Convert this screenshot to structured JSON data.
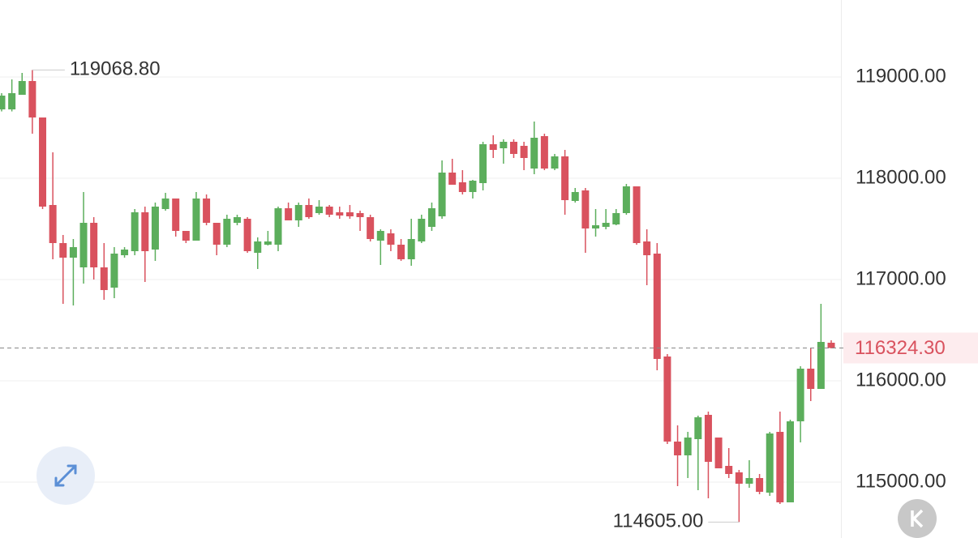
{
  "chart_data": {
    "type": "candlestick",
    "open": [
      118680,
      118680,
      118824,
      118960,
      118600,
      117736,
      117360,
      117216,
      117120,
      117560,
      117120,
      116920,
      117240,
      117280,
      117664,
      117296,
      117696,
      117800,
      117480,
      117384,
      117800,
      117560,
      117344,
      117560,
      117600,
      117264,
      117344,
      117344,
      117704,
      117584,
      117736,
      117656,
      117720,
      117664,
      117664,
      117656,
      117616,
      117384,
      117456,
      117344,
      117200,
      117376,
      117520,
      117624,
      118056,
      117960,
      117864,
      117952,
      118336,
      118296,
      118360,
      118320,
      118096,
      118416,
      118096,
      118216,
      117776,
      117880,
      117504,
      117520,
      117544,
      117656,
      117920,
      117376,
      117256,
      116240,
      115400,
      115264,
      115424,
      115664,
      115440,
      115160,
      115096,
      114984,
      115040,
      114896,
      115496,
      114800,
      115600,
      116120,
      115920,
      116376
    ],
    "high": [
      118840,
      118976,
      119040,
      119068.8,
      118600,
      118256,
      117440,
      117400,
      117864,
      117616,
      117360,
      117320,
      117320,
      117696,
      117720,
      117760,
      117856,
      117800,
      117480,
      117864,
      117840,
      117560,
      117640,
      117640,
      117616,
      117416,
      117480,
      117720,
      117760,
      117760,
      117800,
      117784,
      117736,
      117720,
      117736,
      117680,
      117640,
      117496,
      117496,
      117400,
      117600,
      117640,
      117760,
      118176,
      118192,
      118080,
      117984,
      118360,
      118424,
      118384,
      118384,
      118360,
      118560,
      118440,
      118240,
      118280,
      117904,
      117904,
      117696,
      117696,
      117696,
      117944,
      117920,
      117496,
      117360,
      116264,
      115560,
      115496,
      115656,
      115696,
      115440,
      115336,
      115120,
      115216,
      115080,
      115496,
      115696,
      115616,
      116144,
      116320,
      116760,
      116400
    ],
    "low": [
      118660,
      118660,
      118824,
      118440,
      117696,
      117200,
      116760,
      116744,
      116960,
      117000,
      116800,
      116816,
      117216,
      117240,
      116976,
      117184,
      117680,
      117424,
      117360,
      117384,
      117536,
      117240,
      117320,
      117536,
      117264,
      117104,
      117336,
      117280,
      117584,
      117520,
      117600,
      117640,
      117616,
      117600,
      117600,
      117480,
      117376,
      117144,
      117280,
      117184,
      117136,
      117360,
      117480,
      117600,
      117936,
      117840,
      117800,
      117880,
      118200,
      118144,
      118200,
      118080,
      118040,
      118080,
      118080,
      117640,
      117760,
      117264,
      117424,
      117496,
      117536,
      117640,
      117344,
      116944,
      116104,
      115376,
      114960,
      115040,
      114920,
      114840,
      115136,
      115040,
      114605,
      114944,
      114880,
      114864,
      114784,
      114800,
      115392,
      115800,
      115920,
      116320
    ],
    "close": [
      118816,
      118840,
      118960,
      118600,
      117720,
      117360,
      117216,
      117320,
      117560,
      117120,
      116896,
      117256,
      117296,
      117664,
      117280,
      117720,
      117800,
      117480,
      117384,
      117800,
      117560,
      117344,
      117600,
      117616,
      117280,
      117376,
      117376,
      117704,
      117584,
      117736,
      117616,
      117720,
      117640,
      117632,
      117624,
      117616,
      117400,
      117480,
      117344,
      117200,
      117400,
      117600,
      117704,
      118056,
      117936,
      117864,
      117976,
      118336,
      118280,
      118360,
      118240,
      118200,
      118400,
      118096,
      118216,
      117784,
      117864,
      117504,
      117536,
      117560,
      117656,
      117920,
      117360,
      117240,
      116216,
      115400,
      115264,
      115440,
      115640,
      115200,
      115136,
      115080,
      114984,
      115040,
      114904,
      115480,
      114800,
      115600,
      116120,
      115920,
      116384,
      116324.3
    ],
    "up_color": "#5cae5c",
    "down_color": "#d9525e",
    "ylim": [
      114448,
      119760
    ],
    "yticks": [
      {
        "value": 119000,
        "label": "119000.00"
      },
      {
        "value": 118000,
        "label": "118000.00"
      },
      {
        "value": 117000,
        "label": "117000.00"
      },
      {
        "value": 116000,
        "label": "116000.00"
      },
      {
        "value": 115000,
        "label": "115000.00"
      }
    ],
    "grid": true,
    "last_price": {
      "value": 116324.3,
      "label": "116324.30"
    },
    "high_marker": {
      "value": 119068.8,
      "label": "119068.80"
    },
    "low_marker": {
      "value": 114605,
      "label": "114605.00"
    }
  }
}
